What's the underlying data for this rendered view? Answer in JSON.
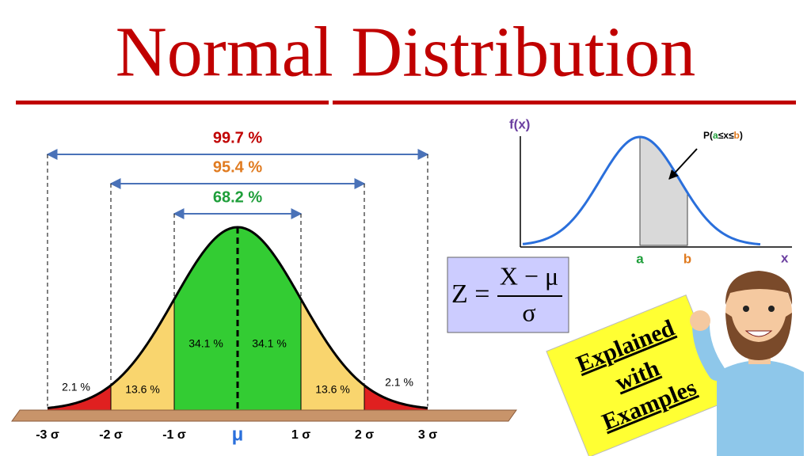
{
  "title": "Normal Distribution",
  "main_curve": {
    "ranges": [
      {
        "label": "99.7 %"
      },
      {
        "label": "95.4 %"
      },
      {
        "label": "68.2 %"
      }
    ],
    "areas": [
      "2.1 %",
      "13.6 %",
      "34.1 %",
      "34.1 %",
      "13.6 %",
      "2.1 %"
    ],
    "axis_labels": [
      "-3 σ",
      "-2 σ",
      "-1 σ",
      "μ",
      "1 σ",
      "2 σ",
      "3 σ"
    ]
  },
  "small_chart": {
    "y_label": "f(x)",
    "x_label": "x",
    "a": "a",
    "b": "b",
    "probability": [
      "P(",
      "a",
      "≤x≤",
      "b",
      ")"
    ]
  },
  "formula": {
    "left": "Z =",
    "numerator": "X − μ",
    "denominator": "σ"
  },
  "note": [
    "Explained",
    "with",
    "Examples"
  ]
}
